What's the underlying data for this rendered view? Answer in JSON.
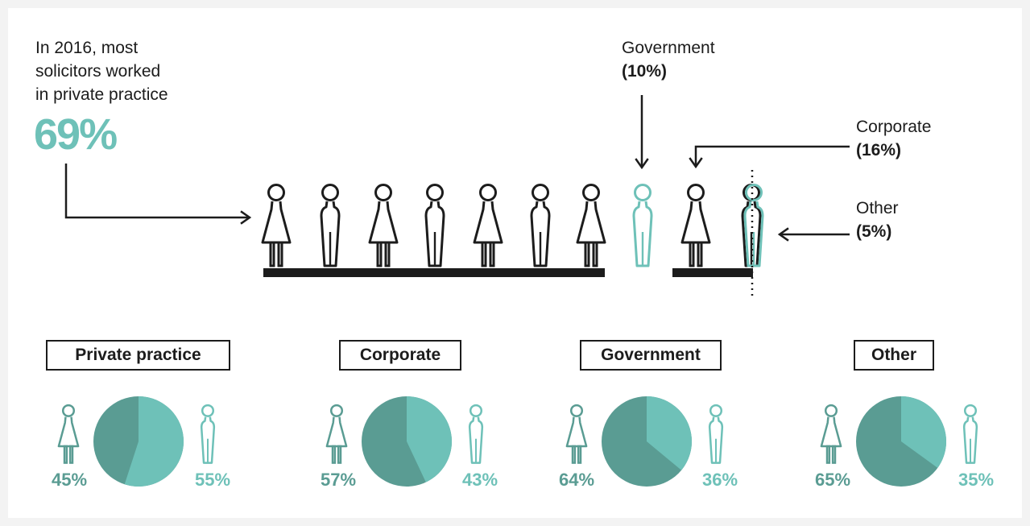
{
  "chart_data": {
    "type": "infographic",
    "intro_lines": [
      "In 2016, most",
      "solicitors worked",
      "in private practice"
    ],
    "highlight": "69%",
    "sectors": [
      {
        "name": "Government",
        "label": "(10%)",
        "value": 10
      },
      {
        "name": "Corporate",
        "label": "(16%)",
        "value": 16
      },
      {
        "name": "Other",
        "label": "(5%)",
        "value": 5
      }
    ],
    "pies": [
      {
        "title": "Private practice",
        "female_label": "45%",
        "male_label": "55%",
        "female": 45,
        "male": 55
      },
      {
        "title": "Corporate",
        "female_label": "57%",
        "male_label": "43%",
        "female": 57,
        "male": 43
      },
      {
        "title": "Government",
        "female_label": "64%",
        "male_label": "36%",
        "female": 64,
        "male": 36
      },
      {
        "title": "Other",
        "female_label": "65%",
        "male_label": "35%",
        "female": 65,
        "male": 35
      }
    ]
  },
  "colors": {
    "ink": "#1c1c1c",
    "teal_light": "#6ec1b8",
    "teal_dark": "#5a9c93"
  }
}
